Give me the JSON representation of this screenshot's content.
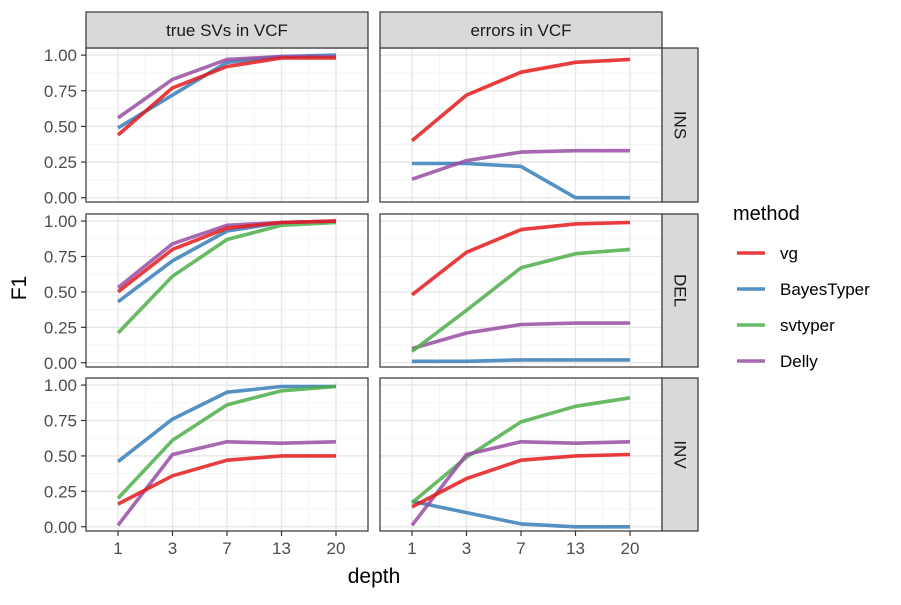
{
  "chart_data": {
    "type": "line",
    "x_categories": [
      "1",
      "3",
      "7",
      "13",
      "20"
    ],
    "xlabel": "depth",
    "ylabel": "F1",
    "y_ticks": [
      "0.00",
      "0.25",
      "0.50",
      "0.75",
      "1.00"
    ],
    "ylim": [
      -0.03,
      1.05
    ],
    "grid": true,
    "facet_columns": [
      "true SVs in VCF",
      "errors in VCF"
    ],
    "facet_rows": [
      "INS",
      "DEL",
      "INV"
    ],
    "legend": {
      "title": "method",
      "position": "right",
      "entries": [
        {
          "name": "vg",
          "color": "#E41A1C"
        },
        {
          "name": "BayesTyper",
          "color": "#377EB8"
        },
        {
          "name": "svtyper",
          "color": "#4DAF4A"
        },
        {
          "name": "Delly",
          "color": "#984EA3"
        }
      ]
    },
    "panels": [
      {
        "row": "INS",
        "column": "true SVs in VCF",
        "series": [
          {
            "name": "BayesTyper",
            "values": [
              0.49,
              0.72,
              0.95,
              0.99,
              1.0
            ]
          },
          {
            "name": "Delly",
            "values": [
              0.56,
              0.83,
              0.97,
              0.99,
              0.99
            ]
          },
          {
            "name": "vg",
            "values": [
              0.44,
              0.77,
              0.92,
              0.98,
              0.98
            ]
          }
        ]
      },
      {
        "row": "INS",
        "column": "errors in VCF",
        "series": [
          {
            "name": "BayesTyper",
            "values": [
              0.24,
              0.24,
              0.22,
              0.0,
              0.0
            ]
          },
          {
            "name": "Delly",
            "values": [
              0.13,
              0.26,
              0.32,
              0.33,
              0.33
            ]
          },
          {
            "name": "vg",
            "values": [
              0.4,
              0.72,
              0.88,
              0.95,
              0.97
            ]
          }
        ]
      },
      {
        "row": "DEL",
        "column": "true SVs in VCF",
        "series": [
          {
            "name": "svtyper",
            "values": [
              0.21,
              0.61,
              0.87,
              0.97,
              0.99
            ]
          },
          {
            "name": "BayesTyper",
            "values": [
              0.43,
              0.72,
              0.93,
              0.99,
              1.0
            ]
          },
          {
            "name": "Delly",
            "values": [
              0.53,
              0.84,
              0.97,
              0.99,
              1.0
            ]
          },
          {
            "name": "vg",
            "values": [
              0.5,
              0.8,
              0.95,
              0.99,
              1.0
            ]
          }
        ]
      },
      {
        "row": "DEL",
        "column": "errors in VCF",
        "series": [
          {
            "name": "BayesTyper",
            "values": [
              0.01,
              0.01,
              0.02,
              0.02,
              0.02
            ]
          },
          {
            "name": "Delly",
            "values": [
              0.1,
              0.21,
              0.27,
              0.28,
              0.28
            ]
          },
          {
            "name": "svtyper",
            "values": [
              0.08,
              0.37,
              0.67,
              0.77,
              0.8
            ]
          },
          {
            "name": "vg",
            "values": [
              0.48,
              0.78,
              0.94,
              0.98,
              0.99
            ]
          }
        ]
      },
      {
        "row": "INV",
        "column": "true SVs in VCF",
        "series": [
          {
            "name": "BayesTyper",
            "values": [
              0.46,
              0.76,
              0.95,
              0.99,
              0.99
            ]
          },
          {
            "name": "svtyper",
            "values": [
              0.2,
              0.61,
              0.86,
              0.96,
              0.99
            ]
          },
          {
            "name": "Delly",
            "values": [
              0.01,
              0.51,
              0.6,
              0.59,
              0.6
            ]
          },
          {
            "name": "vg",
            "values": [
              0.16,
              0.36,
              0.47,
              0.5,
              0.5
            ]
          }
        ]
      },
      {
        "row": "INV",
        "column": "errors in VCF",
        "series": [
          {
            "name": "BayesTyper",
            "values": [
              0.18,
              0.1,
              0.02,
              0.0,
              0.0
            ]
          },
          {
            "name": "svtyper",
            "values": [
              0.17,
              0.49,
              0.74,
              0.85,
              0.91
            ]
          },
          {
            "name": "Delly",
            "values": [
              0.01,
              0.51,
              0.6,
              0.59,
              0.6
            ]
          },
          {
            "name": "vg",
            "values": [
              0.14,
              0.34,
              0.47,
              0.5,
              0.51
            ]
          }
        ]
      }
    ]
  }
}
